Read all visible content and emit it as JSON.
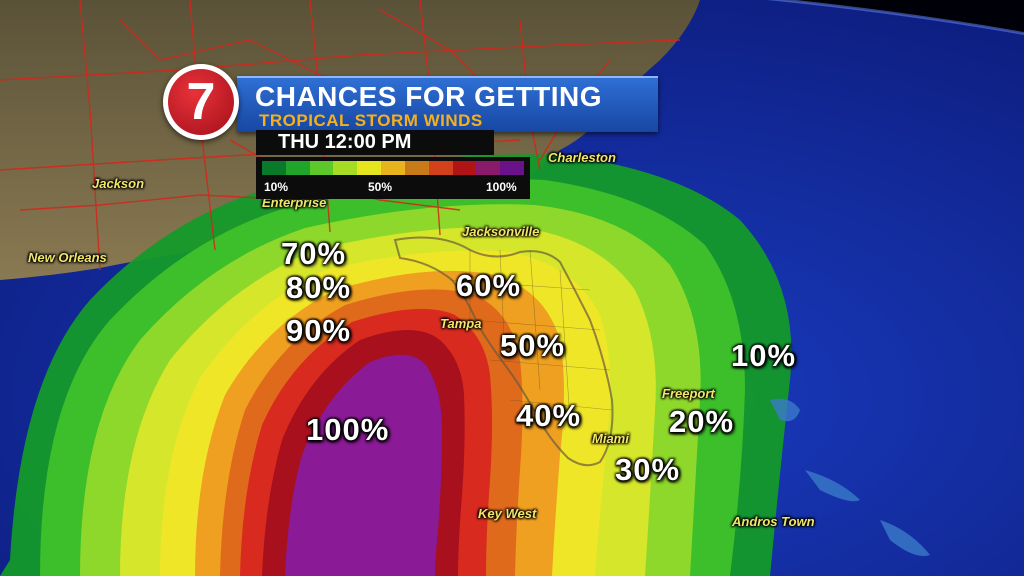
{
  "logo": {
    "number": "7"
  },
  "title": {
    "line1": "CHANCES FOR GETTING",
    "line2": "TROPICAL STORM WINDS"
  },
  "time": {
    "label": "THU   12:00 PM"
  },
  "legend": {
    "min_label": "10%",
    "mid_label": "50%",
    "max_label": "100%",
    "colors": [
      "#0a7a2a",
      "#1fa62a",
      "#5cc82a",
      "#a6dc24",
      "#e6e61e",
      "#e8b41e",
      "#c77a18",
      "#d2401c",
      "#b01414",
      "#8a1a6a",
      "#6a128a"
    ]
  },
  "cities": [
    {
      "name": "Charleston"
    },
    {
      "name": "Jackson"
    },
    {
      "name": "Enterprise"
    },
    {
      "name": "Jacksonville"
    },
    {
      "name": "New Orleans"
    },
    {
      "name": "Tampa"
    },
    {
      "name": "Freeport"
    },
    {
      "name": "Miami"
    },
    {
      "name": "Key West"
    },
    {
      "name": "Andros Town"
    }
  ],
  "probabilities": [
    {
      "label": "70%"
    },
    {
      "label": "80%"
    },
    {
      "label": "90%"
    },
    {
      "label": "100%"
    },
    {
      "label": "60%"
    },
    {
      "label": "50%"
    },
    {
      "label": "40%"
    },
    {
      "label": "10%"
    },
    {
      "label": "20%"
    },
    {
      "label": "30%"
    }
  ],
  "colors": {
    "ocean": "#1630a0",
    "land": "#7a6a4a",
    "band_10": "#149a2a",
    "band_20": "#3cbf2a",
    "band_30": "#8ed82c",
    "band_40": "#d6e62a",
    "band_50": "#f0e628",
    "band_60": "#f0a020",
    "band_70": "#e06a1c",
    "band_80": "#d82a1e",
    "band_90": "#a8101e",
    "band_100": "#8a1a96",
    "title_blue": "#1f58c0",
    "title_orange": "#f5b01b",
    "city_yellow": "#f2e66a"
  }
}
